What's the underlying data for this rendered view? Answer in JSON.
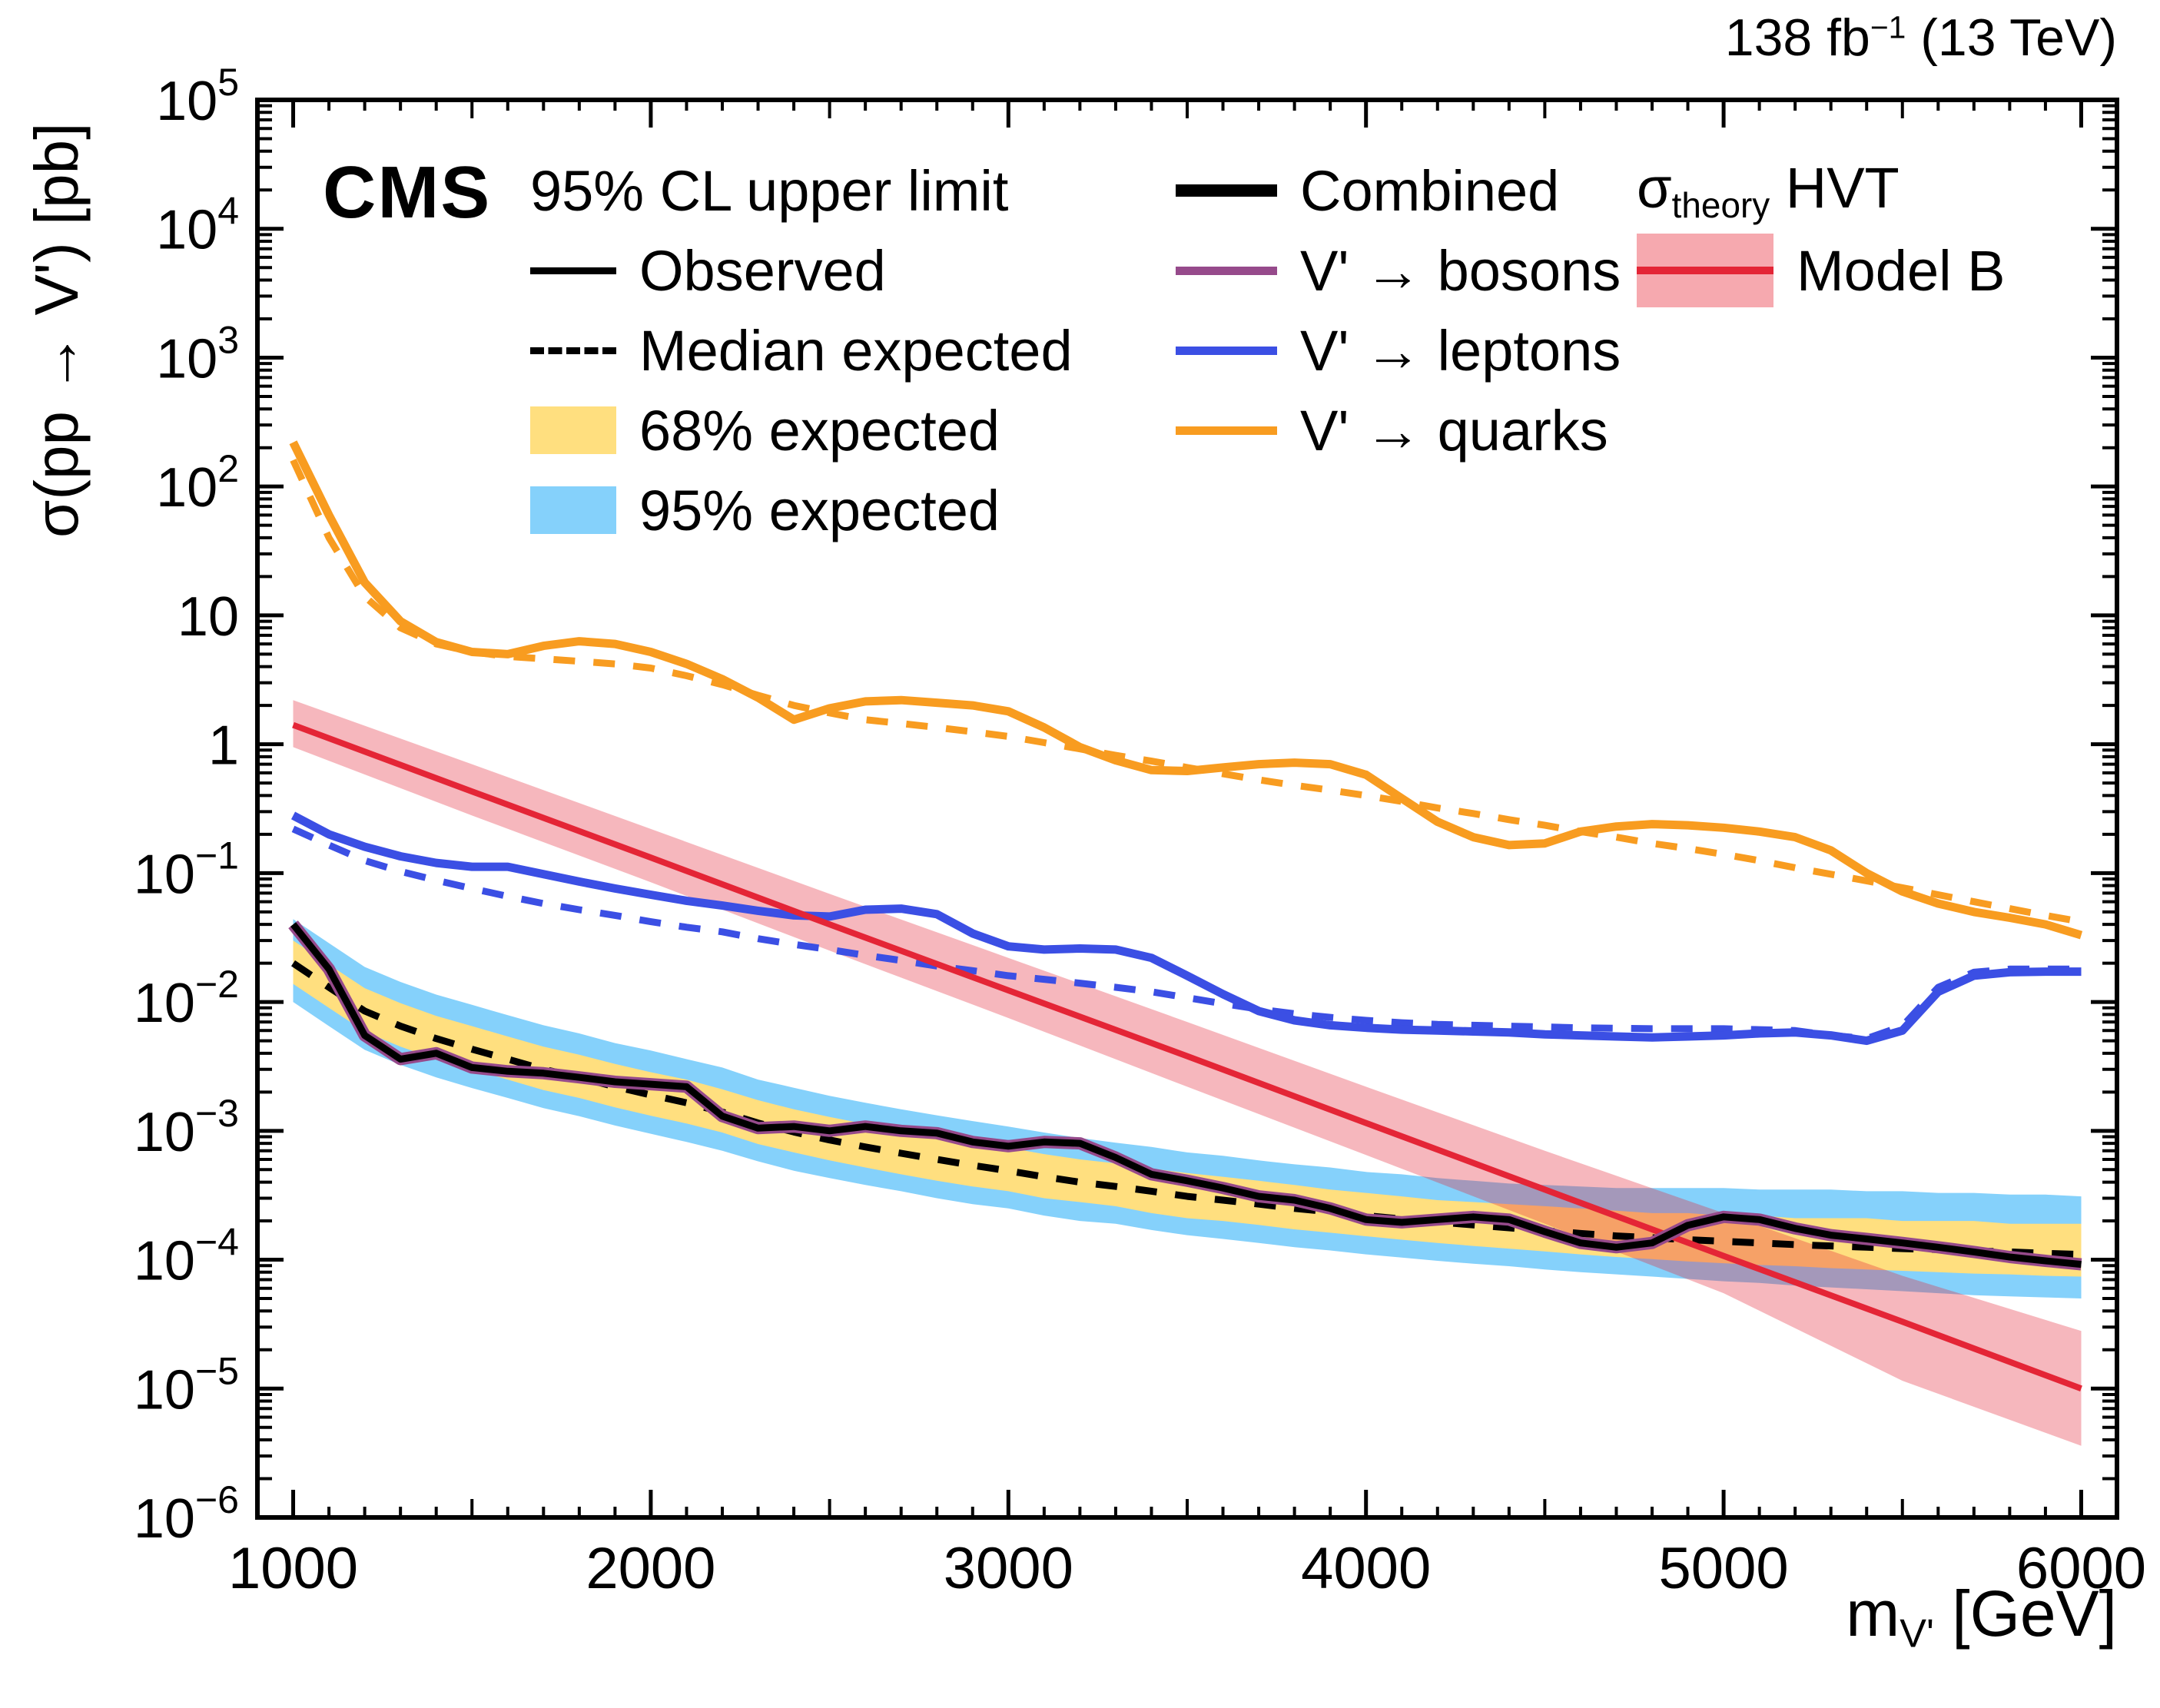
{
  "header": {
    "cms": "CMS",
    "lumi": {
      "text": "138 fb",
      "sup": "−1",
      "rest": " (13 TeV)"
    }
  },
  "axis": {
    "ylabel": "σ(pp → V') [pb]",
    "xlabel_base": "m",
    "xlabel_sub": "V'",
    "xlabel_rest": " [GeV]"
  },
  "legend": {
    "col1": {
      "title": "95% CL upper limit",
      "observed": "Observed",
      "median": "Median expected",
      "band68": "68% expected",
      "band95": "95% expected"
    },
    "col2": {
      "combined": "Combined",
      "bosons": "V' → bosons",
      "leptons": "V' → leptons",
      "quarks": "V' → quarks"
    },
    "col3": {
      "sigma": "σ",
      "sigma_sub": "theory",
      "hvt": " HVT",
      "model": "Model B"
    }
  },
  "colors": {
    "observed": "#000000",
    "expected": "#000000",
    "combined": "#000000",
    "band68": "#FFDF7F",
    "band95": "#85D1FB",
    "bosons": "#964A8B",
    "leptons": "#3B4FE4",
    "quarks": "#F89C20",
    "theory": "#E42536",
    "theory_band": "#F6A9AF"
  },
  "chart_data": {
    "type": "line",
    "title": "CMS 95% CL upper limits on σ(pp → V') vs m_V'",
    "xlabel": "m_V' [GeV]",
    "ylabel": "σ(pp → V') [pb]",
    "xlim": [
      900,
      6100
    ],
    "ylog": true,
    "ylim_exp": [
      -6,
      5
    ],
    "x_ticks": [
      1000,
      2000,
      3000,
      4000,
      5000,
      6000
    ],
    "y_tick_exps": [
      5,
      4,
      3,
      2,
      1,
      0,
      -1,
      -2,
      -3,
      -4,
      -5,
      -6
    ],
    "x": [
      1000,
      1100,
      1200,
      1300,
      1400,
      1500,
      1600,
      1700,
      1800,
      1900,
      2000,
      2100,
      2200,
      2300,
      2400,
      2500,
      2600,
      2700,
      2800,
      2900,
      3000,
      3100,
      3200,
      3300,
      3400,
      3500,
      3600,
      3700,
      3800,
      3900,
      4000,
      4100,
      4200,
      4300,
      4400,
      4500,
      4600,
      4700,
      4800,
      4900,
      5000,
      5100,
      5200,
      5300,
      5400,
      5500,
      5600,
      5700,
      5800,
      5900,
      6000
    ],
    "series": [
      {
        "name": "95-percent-expected-band",
        "type": "band",
        "color": "#85D1FB",
        "upper": [
          0.044,
          0.0286,
          0.0187,
          0.0143,
          0.0114,
          0.0095,
          0.0079,
          0.0066,
          0.0057,
          0.0048,
          0.0042,
          0.0036,
          0.0031,
          0.0025,
          0.00216,
          0.00187,
          0.00165,
          0.00147,
          0.00132,
          0.00119,
          0.00108,
          0.00097,
          0.00088,
          0.00081,
          0.00075,
          0.00068,
          0.00064,
          0.00059,
          0.00055,
          0.00052,
          0.00048,
          0.00046,
          0.00043,
          0.00041,
          0.00039,
          0.00038,
          0.00037,
          0.00036,
          0.00036,
          0.00036,
          0.00036,
          0.00035,
          0.00035,
          0.00035,
          0.00034,
          0.00034,
          0.00033,
          0.00033,
          0.00032,
          0.00032,
          0.00031
        ],
        "lower": [
          0.01,
          0.0065,
          0.00425,
          0.00325,
          0.0026,
          0.00215,
          0.0018,
          0.0015,
          0.0013,
          0.0011,
          0.00095,
          0.00082,
          0.0007,
          0.00058,
          0.00049,
          0.00043,
          0.00038,
          0.00034,
          0.0003,
          0.00027,
          0.00025,
          0.00022,
          0.0002,
          0.00019,
          0.00017,
          0.000155,
          0.000145,
          0.000135,
          0.000125,
          0.000118,
          0.00011,
          0.000104,
          9.8e-05,
          9.3e-05,
          8.9e-05,
          8.4e-05,
          8e-05,
          7.7e-05,
          7.4e-05,
          7.1e-05,
          6.8e-05,
          6.6e-05,
          6.3e-05,
          6.1e-05,
          5.9e-05,
          5.7e-05,
          5.5e-05,
          5.3e-05,
          5.2e-05,
          5.1e-05,
          5e-05
        ]
      },
      {
        "name": "68-percent-expected-band",
        "type": "band",
        "color": "#FFDF7F",
        "upper": [
          0.03,
          0.0195,
          0.0128,
          0.0098,
          0.0078,
          0.0065,
          0.0054,
          0.0045,
          0.0039,
          0.0033,
          0.00285,
          0.0025,
          0.0021,
          0.00173,
          0.00147,
          0.00128,
          0.00113,
          0.00101,
          0.0009,
          0.00081,
          0.00074,
          0.00066,
          0.0006,
          0.00056,
          0.00051,
          0.00047,
          0.00044,
          0.00041,
          0.00038,
          0.00035,
          0.00033,
          0.00031,
          0.00029,
          0.00028,
          0.00027,
          0.00026,
          0.00025,
          0.00024,
          0.00023,
          0.00023,
          0.00022,
          0.00022,
          0.00021,
          0.00021,
          0.00021,
          0.0002,
          0.0002,
          0.0002,
          0.00019,
          0.00019,
          0.00019
        ],
        "lower": [
          0.0138,
          0.009,
          0.0059,
          0.0045,
          0.0036,
          0.003,
          0.0025,
          0.00207,
          0.0018,
          0.00152,
          0.00131,
          0.00114,
          0.00097,
          0.00079,
          0.00068,
          0.00059,
          0.00052,
          0.00046,
          0.00041,
          0.00037,
          0.00034,
          0.0003,
          0.00028,
          0.00026,
          0.00023,
          0.00021,
          0.0002,
          0.000186,
          0.000172,
          0.000162,
          0.000152,
          0.000143,
          0.000135,
          0.000128,
          0.000122,
          0.000116,
          0.00011,
          0.000105,
          0.000101,
          9.7e-05,
          9.4e-05,
          9.1e-05,
          8.9e-05,
          8.6e-05,
          8.4e-05,
          8.2e-05,
          8e-05,
          7.8e-05,
          7.7e-05,
          7.5e-05,
          7.4e-05
        ]
      },
      {
        "name": "theory-hvt-model-b-band",
        "type": "band",
        "color": "#E42536",
        "opacity": 0.33,
        "x": [
          1000,
          1500,
          2000,
          2500,
          3000,
          3500,
          4000,
          4500,
          5000,
          5500,
          6000
        ],
        "upper": [
          2.2,
          0.7,
          0.22,
          0.069,
          0.022,
          0.007,
          0.0022,
          0.0007,
          0.00023,
          7.5e-05,
          2.8e-05
        ],
        "lower": [
          0.95,
          0.28,
          0.085,
          0.025,
          0.0075,
          0.0022,
          0.00065,
          0.00019,
          5.5e-05,
          1.15e-05,
          3.6e-06
        ]
      },
      {
        "name": "quarks-expected",
        "type": "line",
        "color": "#F89C20",
        "width": 9,
        "dash": "28 24",
        "values": [
          160,
          40,
          14,
          8,
          6.0,
          5.2,
          4.8,
          4.6,
          4.4,
          4.2,
          3.9,
          3.4,
          2.9,
          2.4,
          2.0,
          1.75,
          1.55,
          1.45,
          1.35,
          1.25,
          1.15,
          1.03,
          0.92,
          0.82,
          0.74,
          0.66,
          0.59,
          0.53,
          0.48,
          0.44,
          0.4,
          0.36,
          0.32,
          0.29,
          0.26,
          0.235,
          0.21,
          0.19,
          0.17,
          0.155,
          0.14,
          0.125,
          0.11,
          0.098,
          0.087,
          0.077,
          0.068,
          0.06,
          0.053,
          0.047,
          0.042
        ]
      },
      {
        "name": "quarks-observed",
        "type": "line",
        "color": "#F89C20",
        "width": 11,
        "values": [
          220,
          60,
          18,
          9,
          6.2,
          5.2,
          5.0,
          5.8,
          6.3,
          6.0,
          5.2,
          4.2,
          3.2,
          2.3,
          1.55,
          1.9,
          2.15,
          2.2,
          2.1,
          2.0,
          1.8,
          1.35,
          0.95,
          0.75,
          0.63,
          0.62,
          0.66,
          0.7,
          0.72,
          0.7,
          0.58,
          0.38,
          0.25,
          0.19,
          0.165,
          0.17,
          0.21,
          0.23,
          0.24,
          0.235,
          0.225,
          0.21,
          0.19,
          0.15,
          0.1,
          0.072,
          0.058,
          0.05,
          0.045,
          0.04,
          0.033
        ]
      },
      {
        "name": "leptons-expected",
        "type": "line",
        "color": "#3B4FE4",
        "width": 9,
        "dash": "28 24",
        "values": [
          0.22,
          0.165,
          0.125,
          0.103,
          0.088,
          0.076,
          0.066,
          0.058,
          0.052,
          0.047,
          0.042,
          0.038,
          0.035,
          0.031,
          0.028,
          0.0255,
          0.023,
          0.021,
          0.019,
          0.0175,
          0.016,
          0.015,
          0.014,
          0.013,
          0.012,
          0.0108,
          0.0097,
          0.0088,
          0.0081,
          0.0076,
          0.0072,
          0.0069,
          0.0067,
          0.0066,
          0.0065,
          0.0064,
          0.0063,
          0.00625,
          0.0062,
          0.0062,
          0.0062,
          0.0061,
          0.006,
          0.0055,
          0.0052,
          0.0065,
          0.013,
          0.017,
          0.018,
          0.018,
          0.018
        ]
      },
      {
        "name": "leptons-observed",
        "type": "line",
        "color": "#3B4FE4",
        "width": 11,
        "values": [
          0.28,
          0.2,
          0.16,
          0.135,
          0.12,
          0.112,
          0.112,
          0.098,
          0.086,
          0.076,
          0.068,
          0.061,
          0.056,
          0.051,
          0.047,
          0.046,
          0.052,
          0.053,
          0.048,
          0.034,
          0.027,
          0.0255,
          0.026,
          0.0255,
          0.022,
          0.016,
          0.0115,
          0.0085,
          0.0072,
          0.0066,
          0.0063,
          0.0061,
          0.006,
          0.0059,
          0.0058,
          0.0056,
          0.0055,
          0.0054,
          0.0053,
          0.0054,
          0.0055,
          0.0057,
          0.0058,
          0.0055,
          0.005,
          0.006,
          0.012,
          0.016,
          0.017,
          0.0172,
          0.0172
        ]
      },
      {
        "name": "combined-expected",
        "type": "line",
        "color": "#000000",
        "width": 9,
        "dash": "28 24",
        "values": [
          0.02,
          0.013,
          0.0085,
          0.0065,
          0.0052,
          0.0043,
          0.0036,
          0.003,
          0.0026,
          0.0022,
          0.0019,
          0.00165,
          0.0014,
          0.00115,
          0.00098,
          0.00085,
          0.00075,
          0.00067,
          0.0006,
          0.00054,
          0.00049,
          0.00044,
          0.0004,
          0.00037,
          0.00034,
          0.00031,
          0.00029,
          0.00027,
          0.00025,
          0.000235,
          0.00022,
          0.000207,
          0.000196,
          0.000186,
          0.000177,
          0.000168,
          0.00016,
          0.000153,
          0.000148,
          0.000143,
          0.000139,
          0.000135,
          0.000131,
          0.000128,
          0.000125,
          0.000122,
          0.00012,
          0.000117,
          0.000115,
          0.000112,
          0.00011
        ]
      },
      {
        "name": "theory-hvt-model-b",
        "type": "line",
        "color": "#E42536",
        "width": 8,
        "x": [
          1000,
          1500,
          2000,
          2500,
          3000,
          3500,
          4000,
          4500,
          5000,
          5500,
          6000
        ],
        "values": [
          1.41,
          0.43,
          0.132,
          0.04,
          0.0123,
          0.0038,
          0.00115,
          0.00035,
          0.000107,
          3.3e-05,
          1e-05
        ]
      },
      {
        "name": "bosons-observed",
        "type": "line",
        "color": "#964A8B",
        "width": 16,
        "values": [
          0.04,
          0.018,
          0.0055,
          0.0036,
          0.004,
          0.0031,
          0.0029,
          0.0028,
          0.0026,
          0.0024,
          0.0023,
          0.0022,
          0.0013,
          0.00105,
          0.00108,
          0.001,
          0.00108,
          0.001,
          0.00096,
          0.00082,
          0.00076,
          0.00082,
          0.0008,
          0.00062,
          0.00046,
          0.00041,
          0.00036,
          0.00031,
          0.00029,
          0.00025,
          0.000205,
          0.000195,
          0.000205,
          0.000215,
          0.000205,
          0.000165,
          0.000135,
          0.000125,
          0.000135,
          0.000185,
          0.000215,
          0.000205,
          0.000175,
          0.000155,
          0.000145,
          0.000135,
          0.000125,
          0.000115,
          0.000105,
          9.8e-05,
          9.2e-05
        ]
      },
      {
        "name": "combined-observed",
        "type": "line",
        "color": "#000000",
        "width": 9,
        "values": [
          0.04,
          0.018,
          0.0055,
          0.0036,
          0.004,
          0.0031,
          0.0029,
          0.0028,
          0.0026,
          0.0024,
          0.0023,
          0.0022,
          0.0013,
          0.00105,
          0.00108,
          0.001,
          0.00108,
          0.001,
          0.00096,
          0.00082,
          0.00076,
          0.00082,
          0.0008,
          0.00062,
          0.00046,
          0.00041,
          0.00036,
          0.00031,
          0.00029,
          0.00025,
          0.000205,
          0.000195,
          0.000205,
          0.000215,
          0.000205,
          0.000165,
          0.000135,
          0.000125,
          0.000135,
          0.000185,
          0.000215,
          0.000205,
          0.000175,
          0.000155,
          0.000145,
          0.000135,
          0.000125,
          0.000115,
          0.000105,
          9.8e-05,
          9.2e-05
        ]
      }
    ]
  }
}
